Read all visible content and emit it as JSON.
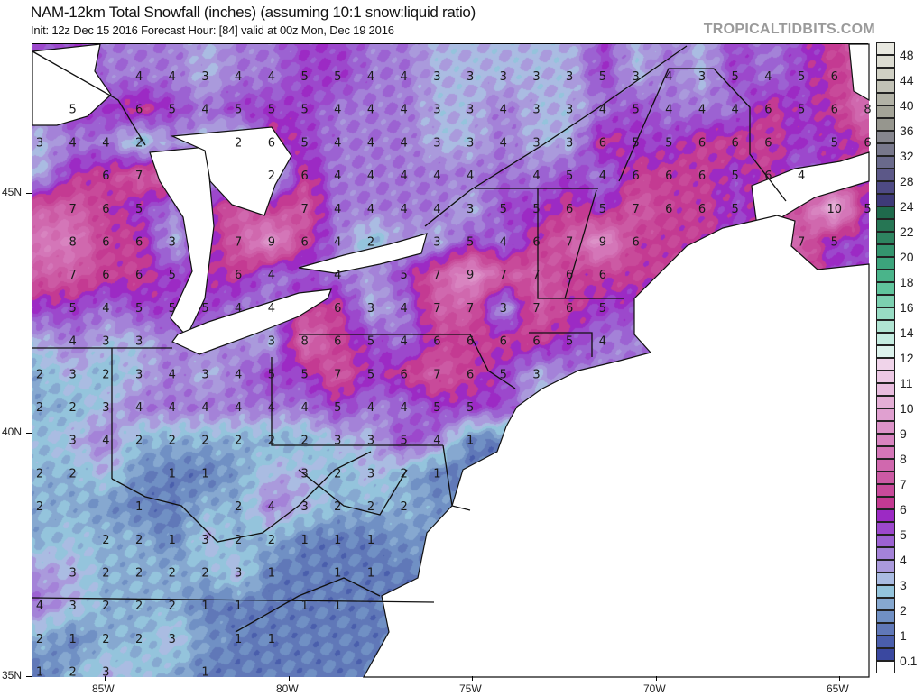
{
  "header": {
    "title": "NAM-12km Total Snowfall (inches) (assuming 10:1 snow:liquid ratio)",
    "subtitle": "Init: 12z Dec 15 2016   Forecast Hour: [84]   valid at 00z Mon, Dec 19 2016",
    "brand": "TROPICALTIDBITS.COM"
  },
  "axes": {
    "longitudes": [
      "85W",
      "80W",
      "75W",
      "70W",
      "65W"
    ],
    "latitudes": [
      "45N",
      "40N",
      "35N"
    ]
  },
  "colorbar": {
    "unit": "inches",
    "segments": [
      {
        "min": 48,
        "color": "#e8e8e0"
      },
      {
        "min": 46,
        "color": "#dcdcd2"
      },
      {
        "min": 44,
        "color": "#d0d0c4"
      },
      {
        "min": 42,
        "color": "#c2c2b6"
      },
      {
        "min": 40,
        "color": "#b2b2a6"
      },
      {
        "min": 38,
        "color": "#a4a498"
      },
      {
        "min": 36,
        "color": "#96968e"
      },
      {
        "min": 34,
        "color": "#86868e"
      },
      {
        "min": 32,
        "color": "#78788c"
      },
      {
        "min": 30,
        "color": "#6a6a8c"
      },
      {
        "min": 28,
        "color": "#5c5888"
      },
      {
        "min": 26,
        "color": "#4e4a84"
      },
      {
        "min": 24,
        "color": "#3e3a78"
      },
      {
        "min": 23,
        "color": "#1f6a4c"
      },
      {
        "min": 22,
        "color": "#267654"
      },
      {
        "min": 21,
        "color": "#2e8460"
      },
      {
        "min": 20,
        "color": "#34946e"
      },
      {
        "min": 19,
        "color": "#3ca47c"
      },
      {
        "min": 18,
        "color": "#4ab48a"
      },
      {
        "min": 17,
        "color": "#60c49c"
      },
      {
        "min": 16,
        "color": "#7cd0b0"
      },
      {
        "min": 15,
        "color": "#98dcc4"
      },
      {
        "min": 14,
        "color": "#b0e4d2"
      },
      {
        "min": 13,
        "color": "#c4ece0"
      },
      {
        "min": 12,
        "color": "#dcf2ec"
      },
      {
        "min": 11.5,
        "color": "#f0d4ea"
      },
      {
        "min": 11,
        "color": "#ecc8e4"
      },
      {
        "min": 10.5,
        "color": "#e8bcde"
      },
      {
        "min": 10,
        "color": "#e4aed6"
      },
      {
        "min": 9.5,
        "color": "#e0a0d0"
      },
      {
        "min": 9,
        "color": "#dc92c8"
      },
      {
        "min": 8.5,
        "color": "#d884c0"
      },
      {
        "min": 8,
        "color": "#d476b8"
      },
      {
        "min": 7.5,
        "color": "#d068ae"
      },
      {
        "min": 7,
        "color": "#cc5aa4"
      },
      {
        "min": 6.5,
        "color": "#c84a9a"
      },
      {
        "min": 6,
        "color": "#c43a92"
      },
      {
        "min": 5.5,
        "color": "#9c2ac4"
      },
      {
        "min": 5,
        "color": "#9c48cc"
      },
      {
        "min": 4.5,
        "color": "#9c62d2"
      },
      {
        "min": 4,
        "color": "#a482d8"
      },
      {
        "min": 3.5,
        "color": "#aa9adc"
      },
      {
        "min": 3,
        "color": "#aabce2"
      },
      {
        "min": 2.5,
        "color": "#94c4dc"
      },
      {
        "min": 2,
        "color": "#86a8d0"
      },
      {
        "min": 1.5,
        "color": "#7090c4"
      },
      {
        "min": 1,
        "color": "#6078b8"
      },
      {
        "min": 0.5,
        "color": "#4a5eac"
      },
      {
        "min": 0.1,
        "color": "#3a48a0"
      },
      {
        "min": 0,
        "color": "#ffffff"
      }
    ],
    "tick_labels": [
      "48",
      "44",
      "40",
      "36",
      "32",
      "28",
      "24",
      "22",
      "20",
      "18",
      "16",
      "14",
      "12",
      "11",
      "10",
      "9",
      "8",
      "7",
      "6",
      "5",
      "4",
      "3",
      "2",
      "1",
      "0.1"
    ]
  },
  "snowfall_grid": [
    [
      "",
      "",
      "",
      "4",
      "4",
      "3",
      "4",
      "4",
      "5",
      "5",
      "4",
      "4",
      "3",
      "3",
      "3",
      "3",
      "3",
      "5",
      "3",
      "4",
      "3",
      "5",
      "4",
      "5",
      "6",
      ""
    ],
    [
      "",
      "5",
      "",
      "6",
      "5",
      "4",
      "5",
      "5",
      "5",
      "4",
      "4",
      "4",
      "3",
      "3",
      "4",
      "3",
      "3",
      "4",
      "5",
      "4",
      "4",
      "4",
      "6",
      "5",
      "6",
      "8"
    ],
    [
      "3",
      "4",
      "4",
      "2",
      "",
      "",
      "2",
      "6",
      "5",
      "4",
      "4",
      "4",
      "3",
      "3",
      "4",
      "3",
      "3",
      "6",
      "5",
      "5",
      "6",
      "6",
      "6",
      "",
      "5",
      "6"
    ],
    [
      "",
      "",
      "6",
      "7",
      "",
      "",
      "",
      "2",
      "6",
      "4",
      "4",
      "4",
      "4",
      "4",
      "",
      "4",
      "5",
      "4",
      "6",
      "6",
      "6",
      "5",
      "6",
      "4",
      "",
      ""
    ],
    [
      "",
      "7",
      "6",
      "5",
      "",
      "",
      "",
      "",
      "7",
      "4",
      "4",
      "4",
      "4",
      "3",
      "5",
      "5",
      "6",
      "5",
      "7",
      "6",
      "6",
      "5",
      "",
      "",
      "10",
      "5"
    ],
    [
      "",
      "8",
      "6",
      "6",
      "3",
      "",
      "7",
      "9",
      "6",
      "4",
      "2",
      "",
      "3",
      "5",
      "4",
      "6",
      "7",
      "9",
      "6",
      "",
      "",
      "",
      "",
      "7",
      "5",
      ""
    ],
    [
      "",
      "7",
      "6",
      "6",
      "5",
      "",
      "6",
      "4",
      "",
      "4",
      "",
      "5",
      "7",
      "9",
      "7",
      "7",
      "6",
      "6"
    ],
    [
      "",
      "5",
      "4",
      "5",
      "5",
      "5",
      "4",
      "4",
      "",
      "6",
      "3",
      "4",
      "7",
      "7",
      "3",
      "7",
      "6",
      "5"
    ],
    [
      "",
      "4",
      "3",
      "3",
      "",
      "",
      "",
      "3",
      "8",
      "6",
      "5",
      "4",
      "6",
      "6",
      "6",
      "6",
      "5",
      "4"
    ],
    [
      "2",
      "3",
      "2",
      "3",
      "4",
      "3",
      "4",
      "5",
      "5",
      "7",
      "5",
      "6",
      "7",
      "6",
      "5",
      "3"
    ],
    [
      "2",
      "2",
      "3",
      "4",
      "4",
      "4",
      "4",
      "4",
      "4",
      "5",
      "4",
      "4",
      "5",
      "5"
    ],
    [
      "",
      "3",
      "4",
      "2",
      "2",
      "2",
      "2",
      "2",
      "2",
      "3",
      "3",
      "5",
      "4",
      "1"
    ],
    [
      "2",
      "2",
      "",
      "",
      "1",
      "1",
      "",
      "",
      "3",
      "2",
      "3",
      "2",
      "1"
    ],
    [
      "2",
      "",
      "",
      "1",
      "",
      "",
      "2",
      "4",
      "3",
      "2",
      "2",
      "2"
    ],
    [
      "",
      "",
      "2",
      "2",
      "1",
      "3",
      "2",
      "2",
      "1",
      "1",
      "1"
    ],
    [
      "",
      "3",
      "2",
      "2",
      "2",
      "2",
      "3",
      "1",
      "",
      "1",
      "1"
    ],
    [
      "4",
      "3",
      "2",
      "2",
      "2",
      "1",
      "1",
      "",
      "1",
      "1"
    ],
    [
      "2",
      "1",
      "2",
      "2",
      "3",
      "",
      "1",
      "1"
    ],
    [
      "1",
      "2",
      "3",
      "",
      "",
      "1"
    ]
  ]
}
